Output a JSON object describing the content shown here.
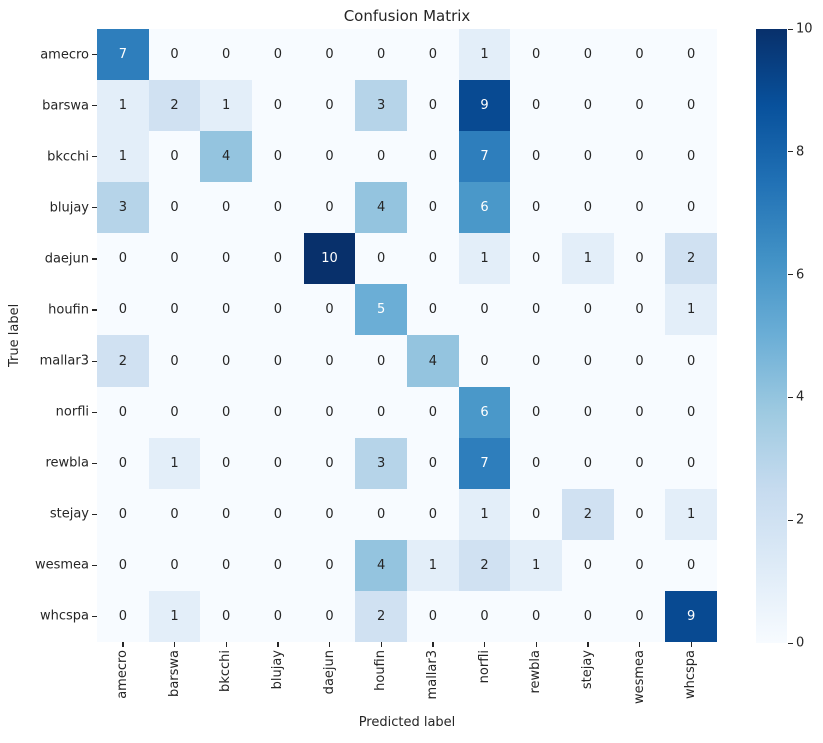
{
  "chart_data": {
    "type": "heatmap",
    "title": "Confusion Matrix",
    "xlabel": "Predicted label",
    "ylabel": "True label",
    "x_categories": [
      "amecro",
      "barswa",
      "bkcchi",
      "blujay",
      "daejun",
      "houfin",
      "mallar3",
      "norfli",
      "rewbla",
      "stejay",
      "wesmea",
      "whcspa"
    ],
    "y_categories": [
      "amecro",
      "barswa",
      "bkcchi",
      "blujay",
      "daejun",
      "houfin",
      "mallar3",
      "norfli",
      "rewbla",
      "stejay",
      "wesmea",
      "whcspa"
    ],
    "matrix": [
      [
        7,
        0,
        0,
        0,
        0,
        0,
        0,
        1,
        0,
        0,
        0,
        0
      ],
      [
        1,
        2,
        1,
        0,
        0,
        3,
        0,
        9,
        0,
        0,
        0,
        0
      ],
      [
        1,
        0,
        4,
        0,
        0,
        0,
        0,
        7,
        0,
        0,
        0,
        0
      ],
      [
        3,
        0,
        0,
        0,
        0,
        4,
        0,
        6,
        0,
        0,
        0,
        0
      ],
      [
        0,
        0,
        0,
        0,
        10,
        0,
        0,
        1,
        0,
        1,
        0,
        2
      ],
      [
        0,
        0,
        0,
        0,
        0,
        5,
        0,
        0,
        0,
        0,
        0,
        1
      ],
      [
        2,
        0,
        0,
        0,
        0,
        0,
        4,
        0,
        0,
        0,
        0,
        0
      ],
      [
        0,
        0,
        0,
        0,
        0,
        0,
        0,
        6,
        0,
        0,
        0,
        0
      ],
      [
        0,
        1,
        0,
        0,
        0,
        3,
        0,
        7,
        0,
        0,
        0,
        0
      ],
      [
        0,
        0,
        0,
        0,
        0,
        0,
        0,
        1,
        0,
        2,
        0,
        1
      ],
      [
        0,
        0,
        0,
        0,
        0,
        4,
        1,
        2,
        1,
        0,
        0,
        0
      ],
      [
        0,
        1,
        0,
        0,
        0,
        2,
        0,
        0,
        0,
        0,
        0,
        9
      ]
    ],
    "vmin": 0,
    "vmax": 10,
    "colormap": "Blues",
    "colormap_stops": [
      "#f7fbff",
      "#deebf7",
      "#c6dbef",
      "#9ecae1",
      "#6baed6",
      "#4292c6",
      "#2171b5",
      "#08519c",
      "#08306b"
    ],
    "colorbar_ticks": [
      0,
      2,
      4,
      6,
      8,
      10
    ],
    "colorbar_position": "right",
    "grid": false,
    "annotation_colors": {
      "dark": "#262626",
      "light": "#ffffff"
    }
  }
}
